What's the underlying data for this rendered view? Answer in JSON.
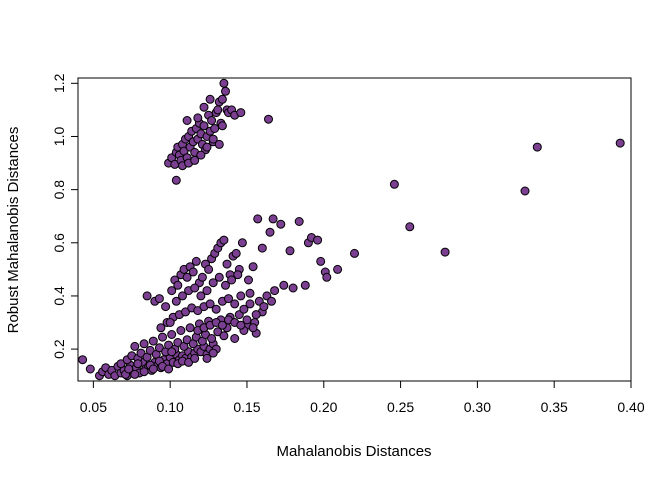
{
  "chart_data": {
    "type": "scatter",
    "title": "",
    "xlabel": "Mahalanobis Distances",
    "ylabel": "Robust Mahalanobis Distances",
    "xlim": [
      0.04,
      0.4
    ],
    "ylim": [
      0.08,
      1.22
    ],
    "xticks": [
      0.05,
      0.1,
      0.15,
      0.2,
      0.25,
      0.3,
      0.35,
      0.4
    ],
    "xtick_labels": [
      "0.05",
      "0.10",
      "0.15",
      "0.20",
      "0.25",
      "0.30",
      "0.35",
      "0.40"
    ],
    "yticks": [
      0.2,
      0.4,
      0.6,
      0.8,
      1.0,
      1.2
    ],
    "ytick_labels": [
      "0.2",
      "0.4",
      "0.6",
      "0.8",
      "1.0",
      "1.2"
    ],
    "grid": false,
    "legend": "none",
    "marker_fill": "#7b3f91",
    "marker_edge": "#000000",
    "points": [
      [
        0.043,
        0.16
      ],
      [
        0.048,
        0.125
      ],
      [
        0.054,
        0.1
      ],
      [
        0.056,
        0.115
      ],
      [
        0.058,
        0.13
      ],
      [
        0.06,
        0.105
      ],
      [
        0.062,
        0.12
      ],
      [
        0.064,
        0.1
      ],
      [
        0.066,
        0.135
      ],
      [
        0.068,
        0.11
      ],
      [
        0.07,
        0.12
      ],
      [
        0.072,
        0.1
      ],
      [
        0.074,
        0.14
      ],
      [
        0.076,
        0.115
      ],
      [
        0.078,
        0.13
      ],
      [
        0.08,
        0.11
      ],
      [
        0.082,
        0.15
      ],
      [
        0.084,
        0.125
      ],
      [
        0.086,
        0.135
      ],
      [
        0.088,
        0.12
      ],
      [
        0.09,
        0.15
      ],
      [
        0.092,
        0.14
      ],
      [
        0.094,
        0.13
      ],
      [
        0.096,
        0.16
      ],
      [
        0.098,
        0.145
      ],
      [
        0.1,
        0.17
      ],
      [
        0.102,
        0.15
      ],
      [
        0.104,
        0.18
      ],
      [
        0.106,
        0.16
      ],
      [
        0.108,
        0.175
      ],
      [
        0.11,
        0.165
      ],
      [
        0.112,
        0.19
      ],
      [
        0.114,
        0.17
      ],
      [
        0.116,
        0.185
      ],
      [
        0.118,
        0.2
      ],
      [
        0.12,
        0.19
      ],
      [
        0.122,
        0.21
      ],
      [
        0.124,
        0.18
      ],
      [
        0.126,
        0.2
      ],
      [
        0.128,
        0.22
      ],
      [
        0.13,
        0.2
      ],
      [
        0.068,
        0.145
      ],
      [
        0.072,
        0.16
      ],
      [
        0.075,
        0.175
      ],
      [
        0.079,
        0.165
      ],
      [
        0.081,
        0.185
      ],
      [
        0.085,
        0.17
      ],
      [
        0.087,
        0.195
      ],
      [
        0.091,
        0.18
      ],
      [
        0.093,
        0.205
      ],
      [
        0.097,
        0.19
      ],
      [
        0.099,
        0.215
      ],
      [
        0.103,
        0.2
      ],
      [
        0.105,
        0.225
      ],
      [
        0.109,
        0.21
      ],
      [
        0.111,
        0.235
      ],
      [
        0.115,
        0.22
      ],
      [
        0.117,
        0.245
      ],
      [
        0.121,
        0.23
      ],
      [
        0.123,
        0.255
      ],
      [
        0.127,
        0.24
      ],
      [
        0.131,
        0.265
      ],
      [
        0.135,
        0.25
      ],
      [
        0.077,
        0.21
      ],
      [
        0.083,
        0.22
      ],
      [
        0.089,
        0.23
      ],
      [
        0.095,
        0.245
      ],
      [
        0.101,
        0.255
      ],
      [
        0.107,
        0.27
      ],
      [
        0.113,
        0.28
      ],
      [
        0.119,
        0.295
      ],
      [
        0.125,
        0.305
      ],
      [
        0.133,
        0.31
      ],
      [
        0.139,
        0.32
      ],
      [
        0.145,
        0.33
      ],
      [
        0.15,
        0.29
      ],
      [
        0.155,
        0.3
      ],
      [
        0.16,
        0.34
      ],
      [
        0.156,
        0.26
      ],
      [
        0.148,
        0.27
      ],
      [
        0.142,
        0.24
      ],
      [
        0.137,
        0.28
      ],
      [
        0.094,
        0.28
      ],
      [
        0.098,
        0.3
      ],
      [
        0.102,
        0.32
      ],
      [
        0.106,
        0.33
      ],
      [
        0.11,
        0.34
      ],
      [
        0.114,
        0.355
      ],
      [
        0.118,
        0.345
      ],
      [
        0.122,
        0.36
      ],
      [
        0.126,
        0.37
      ],
      [
        0.13,
        0.35
      ],
      [
        0.134,
        0.38
      ],
      [
        0.138,
        0.39
      ],
      [
        0.142,
        0.37
      ],
      [
        0.146,
        0.4
      ],
      [
        0.152,
        0.41
      ],
      [
        0.158,
        0.38
      ],
      [
        0.163,
        0.4
      ],
      [
        0.168,
        0.42
      ],
      [
        0.174,
        0.44
      ],
      [
        0.18,
        0.43
      ],
      [
        0.188,
        0.44
      ],
      [
        0.085,
        0.4
      ],
      [
        0.09,
        0.38
      ],
      [
        0.093,
        0.39
      ],
      [
        0.097,
        0.36
      ],
      [
        0.101,
        0.42
      ],
      [
        0.103,
        0.46
      ],
      [
        0.105,
        0.44
      ],
      [
        0.107,
        0.48
      ],
      [
        0.109,
        0.5
      ],
      [
        0.111,
        0.47
      ],
      [
        0.113,
        0.51
      ],
      [
        0.115,
        0.49
      ],
      [
        0.117,
        0.53
      ],
      [
        0.119,
        0.45
      ],
      [
        0.121,
        0.47
      ],
      [
        0.123,
        0.52
      ],
      [
        0.125,
        0.5
      ],
      [
        0.127,
        0.54
      ],
      [
        0.129,
        0.56
      ],
      [
        0.131,
        0.58
      ],
      [
        0.133,
        0.6
      ],
      [
        0.135,
        0.61
      ],
      [
        0.137,
        0.52
      ],
      [
        0.139,
        0.48
      ],
      [
        0.141,
        0.55
      ],
      [
        0.143,
        0.56
      ],
      [
        0.145,
        0.5
      ],
      [
        0.147,
        0.6
      ],
      [
        0.151,
        0.46
      ],
      [
        0.154,
        0.51
      ],
      [
        0.157,
        0.69
      ],
      [
        0.16,
        0.58
      ],
      [
        0.165,
        0.64
      ],
      [
        0.167,
        0.69
      ],
      [
        0.172,
        0.67
      ],
      [
        0.178,
        0.57
      ],
      [
        0.184,
        0.68
      ],
      [
        0.19,
        0.6
      ],
      [
        0.192,
        0.62
      ],
      [
        0.196,
        0.61
      ],
      [
        0.198,
        0.53
      ],
      [
        0.201,
        0.49
      ],
      [
        0.202,
        0.47
      ],
      [
        0.209,
        0.5
      ],
      [
        0.22,
        0.56
      ],
      [
        0.246,
        0.82
      ],
      [
        0.256,
        0.66
      ],
      [
        0.279,
        0.565
      ],
      [
        0.331,
        0.795
      ],
      [
        0.339,
        0.96
      ],
      [
        0.393,
        0.975
      ],
      [
        0.071,
        0.105
      ],
      [
        0.073,
        0.125
      ],
      [
        0.077,
        0.105
      ],
      [
        0.079,
        0.145
      ],
      [
        0.083,
        0.115
      ],
      [
        0.087,
        0.14
      ],
      [
        0.089,
        0.125
      ],
      [
        0.093,
        0.155
      ],
      [
        0.095,
        0.135
      ],
      [
        0.099,
        0.125
      ],
      [
        0.101,
        0.19
      ],
      [
        0.105,
        0.145
      ],
      [
        0.108,
        0.155
      ],
      [
        0.112,
        0.15
      ],
      [
        0.116,
        0.165
      ],
      [
        0.124,
        0.165
      ],
      [
        0.128,
        0.185
      ],
      [
        0.1,
        0.3
      ],
      [
        0.104,
        0.38
      ],
      [
        0.108,
        0.4
      ],
      [
        0.112,
        0.42
      ],
      [
        0.116,
        0.43
      ],
      [
        0.12,
        0.4
      ],
      [
        0.124,
        0.42
      ],
      [
        0.128,
        0.45
      ],
      [
        0.132,
        0.47
      ],
      [
        0.136,
        0.44
      ],
      [
        0.14,
        0.46
      ],
      [
        0.144,
        0.48
      ],
      [
        0.148,
        0.35
      ],
      [
        0.152,
        0.37
      ],
      [
        0.156,
        0.33
      ],
      [
        0.161,
        0.36
      ],
      [
        0.166,
        0.38
      ],
      [
        0.118,
        0.27
      ],
      [
        0.122,
        0.28
      ],
      [
        0.126,
        0.29
      ],
      [
        0.13,
        0.3
      ],
      [
        0.134,
        0.29
      ],
      [
        0.138,
        0.31
      ],
      [
        0.142,
        0.3
      ],
      [
        0.146,
        0.29
      ],
      [
        0.15,
        0.31
      ],
      [
        0.154,
        0.28
      ],
      [
        0.099,
        0.9
      ],
      [
        0.101,
        0.92
      ],
      [
        0.103,
        0.895
      ],
      [
        0.104,
        0.94
      ],
      [
        0.105,
        0.96
      ],
      [
        0.106,
        0.93
      ],
      [
        0.107,
        0.91
      ],
      [
        0.108,
        0.97
      ],
      [
        0.109,
        0.945
      ],
      [
        0.11,
        0.99
      ],
      [
        0.111,
        0.92
      ],
      [
        0.112,
        1.0
      ],
      [
        0.113,
        0.96
      ],
      [
        0.114,
        1.02
      ],
      [
        0.115,
        0.98
      ],
      [
        0.116,
        0.94
      ],
      [
        0.117,
        1.03
      ],
      [
        0.118,
        0.99
      ],
      [
        0.119,
        1.05
      ],
      [
        0.12,
        1.01
      ],
      [
        0.121,
        0.97
      ],
      [
        0.122,
        1.04
      ],
      [
        0.123,
        0.95
      ],
      [
        0.124,
        1.0
      ],
      [
        0.125,
        1.08
      ],
      [
        0.126,
        1.02
      ],
      [
        0.127,
        1.06
      ],
      [
        0.128,
        0.98
      ],
      [
        0.129,
        1.03
      ],
      [
        0.13,
        1.09
      ],
      [
        0.131,
        1.1
      ],
      [
        0.132,
        1.13
      ],
      [
        0.133,
        1.05
      ],
      [
        0.134,
        1.14
      ],
      [
        0.135,
        1.2
      ],
      [
        0.136,
        1.17
      ],
      [
        0.137,
        1.1
      ],
      [
        0.138,
        1.09
      ],
      [
        0.14,
        1.1
      ],
      [
        0.142,
        1.08
      ],
      [
        0.146,
        1.09
      ],
      [
        0.164,
        1.065
      ],
      [
        0.104,
        0.835
      ],
      [
        0.108,
        0.89
      ],
      [
        0.112,
        0.9
      ],
      [
        0.116,
        0.91
      ],
      [
        0.12,
        0.93
      ],
      [
        0.124,
        0.96
      ],
      [
        0.128,
        0.99
      ],
      [
        0.132,
        0.97
      ],
      [
        0.134,
        1.04
      ],
      [
        0.118,
        1.07
      ],
      [
        0.122,
        1.11
      ],
      [
        0.111,
        1.06
      ],
      [
        0.126,
        1.14
      ]
    ]
  }
}
